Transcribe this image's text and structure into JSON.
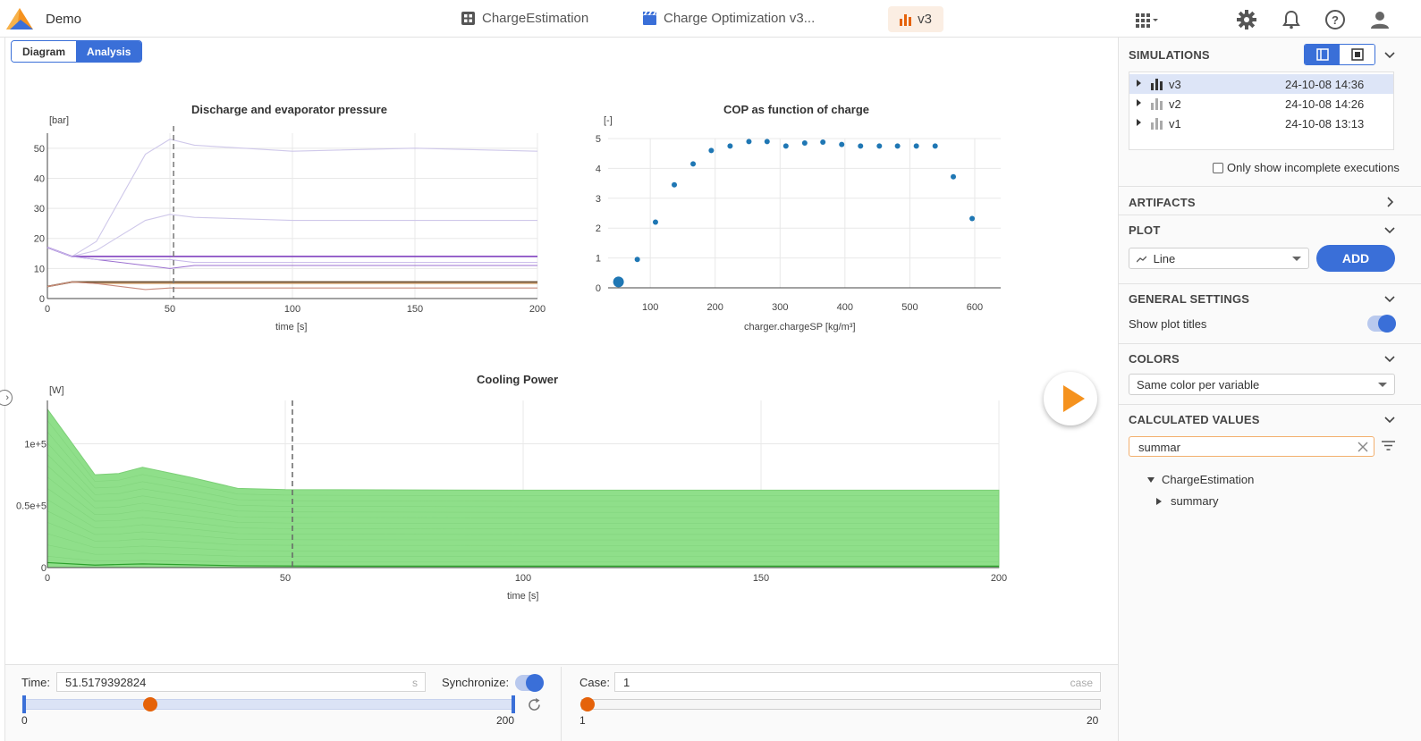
{
  "topbar": {
    "app_name": "Demo",
    "model_name": "ChargeEstimation",
    "experiment_name": "Charge Optimization v3...",
    "version_chip": "v3",
    "icons": [
      "app-grid-icon",
      "gear-icon",
      "bell-icon",
      "help-icon",
      "user-icon"
    ]
  },
  "tabs": {
    "diagram": "Diagram",
    "analysis": "Analysis",
    "active": "Analysis"
  },
  "colors": {
    "accent": "#3a6fd8",
    "orange": "#f5921e",
    "knob": "#e5620a",
    "area_green": "#8fdf8a",
    "scatter_blue": "#1f77b4"
  },
  "charts": {
    "pressure": {
      "title": "Discharge and evaporator pressure",
      "unit": "[bar]",
      "xlabel": "time [s]"
    },
    "cop": {
      "title": "COP as function of charge",
      "unit": "[-]",
      "xlabel": "charger.chargeSP [kg/m³]"
    },
    "cooling": {
      "title": "Cooling Power",
      "unit": "[W]",
      "xlabel": "time [s]"
    }
  },
  "chart_data": [
    {
      "type": "line",
      "title": "Discharge and evaporator pressure",
      "xlabel": "time [s]",
      "ylabel": "[bar]",
      "xlim": [
        0,
        200
      ],
      "ylim": [
        0,
        55
      ],
      "xticks": [
        0,
        50,
        100,
        150,
        200
      ],
      "yticks": [
        0,
        10,
        20,
        30,
        40,
        50
      ],
      "marker_x": 51.5,
      "series": [
        {
          "x": [
            0,
            10,
            20,
            40,
            50,
            60,
            100,
            150,
            200
          ],
          "y": [
            17,
            14,
            19,
            48,
            53,
            51,
            49,
            50,
            49
          ],
          "color": "#cfc8ea"
        },
        {
          "x": [
            0,
            10,
            20,
            40,
            50,
            60,
            100,
            150,
            200
          ],
          "y": [
            17,
            14,
            16,
            26,
            28,
            27,
            26,
            26,
            26
          ],
          "color": "#cfc8ea"
        },
        {
          "x": [
            0,
            10,
            20,
            40,
            50,
            60,
            100,
            150,
            200
          ],
          "y": [
            17,
            14,
            14,
            14,
            14,
            14,
            14,
            14,
            14
          ],
          "color": "#8a4fc4"
        },
        {
          "x": [
            0,
            10,
            20,
            40,
            50,
            60,
            100,
            150,
            200
          ],
          "y": [
            17,
            14,
            13,
            11,
            10,
            11,
            11,
            11,
            11
          ],
          "color": "#9b70d0"
        },
        {
          "x": [
            0,
            10,
            20,
            40,
            50,
            60,
            100,
            150,
            200
          ],
          "y": [
            17,
            14,
            13,
            13,
            13,
            12,
            12,
            12,
            12
          ],
          "color": "#c7b8ea"
        },
        {
          "x": [
            0,
            10,
            20,
            40,
            50,
            60,
            100,
            150,
            200
          ],
          "y": [
            4,
            5.5,
            5.5,
            5.5,
            5.5,
            5.5,
            5.5,
            5.5,
            5.5
          ],
          "color": "#6b4a2a"
        },
        {
          "x": [
            0,
            10,
            20,
            40,
            50,
            60,
            100,
            150,
            200
          ],
          "y": [
            4,
            5.5,
            5,
            5,
            5,
            5,
            5,
            5,
            5
          ],
          "color": "#d9a36c"
        },
        {
          "x": [
            0,
            10,
            20,
            40,
            50,
            60,
            100,
            150,
            200
          ],
          "y": [
            4,
            5.5,
            5,
            3,
            3.5,
            3.5,
            3.5,
            3.5,
            3.5
          ],
          "color": "#c98a7c"
        }
      ]
    },
    {
      "type": "scatter",
      "title": "COP as function of charge",
      "xlabel": "charger.chargeSP [kg/m³]",
      "ylabel": "[-]",
      "xlim": [
        35,
        640
      ],
      "ylim": [
        0,
        5
      ],
      "xticks": [
        100,
        200,
        300,
        400,
        500,
        600
      ],
      "yticks": [
        0,
        1,
        2,
        3,
        4,
        5
      ],
      "highlight_index": 0,
      "x": [
        51,
        80,
        108,
        137,
        166,
        194,
        223,
        252,
        280,
        309,
        338,
        366,
        395,
        424,
        453,
        481,
        510,
        539,
        567,
        596
      ],
      "y": [
        0.2,
        0.95,
        2.2,
        3.45,
        4.15,
        4.6,
        4.75,
        4.9,
        4.9,
        4.75,
        4.85,
        4.88,
        4.8,
        4.75,
        4.75,
        4.75,
        4.75,
        4.75,
        3.72,
        2.32
      ]
    },
    {
      "type": "area",
      "title": "Cooling Power",
      "xlabel": "time [s]",
      "ylabel": "[W]",
      "xlim": [
        0,
        200
      ],
      "ylim": [
        0,
        135000
      ],
      "xticks": [
        0,
        50,
        100,
        150,
        200
      ],
      "yticks": [
        0,
        50000,
        100000
      ],
      "ytick_labels": [
        "0",
        "0.5e+5",
        "1e+5"
      ],
      "marker_x": 51.5,
      "x": [
        0,
        10,
        15,
        20,
        30,
        40,
        50,
        100,
        150,
        200
      ],
      "y": [
        128000,
        75000,
        76000,
        81000,
        73000,
        64000,
        63000,
        62500,
        62500,
        62500
      ]
    }
  ],
  "bottom": {
    "time_label": "Time:",
    "time_value": "51.5179392824",
    "time_unit": "s",
    "sync_label": "Synchronize:",
    "time_min": "0",
    "time_max": "200",
    "time_fraction": 0.2576,
    "case_label": "Case:",
    "case_value": "1",
    "case_unit": "case",
    "case_min": "1",
    "case_max": "20",
    "case_fraction": 0.0
  },
  "panel": {
    "simulations_header": "SIMULATIONS",
    "simulations": [
      {
        "name": "v3",
        "date": "24-10-08 14:36",
        "selected": true
      },
      {
        "name": "v2",
        "date": "24-10-08 14:26",
        "selected": false
      },
      {
        "name": "v1",
        "date": "24-10-08 13:13",
        "selected": false
      }
    ],
    "incomplete_label": "Only show incomplete executions",
    "artifacts_header": "ARTIFACTS",
    "plot_header": "PLOT",
    "plot_type": "Line",
    "add_label": "ADD",
    "general_header": "GENERAL SETTINGS",
    "show_titles_label": "Show plot titles",
    "colors_header": "COLORS",
    "colors_value": "Same color per variable",
    "calc_header": "CALCULATED VALUES",
    "search_value": "summar",
    "tree_root": "ChargeEstimation",
    "tree_child": "summary"
  }
}
